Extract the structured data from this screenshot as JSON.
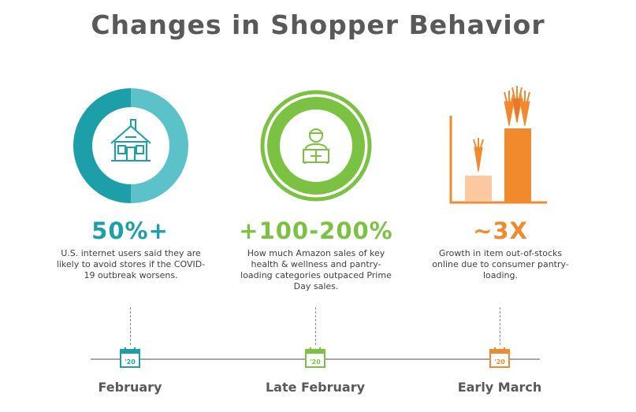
{
  "title": "Changes in Shopper Behavior",
  "colors": {
    "teal": "#1c9fa9",
    "teal_light": "#5bc2ca",
    "green": "#7cc242",
    "orange": "#f08a2c",
    "orange_light": "#fbc8a0",
    "text": "#404040",
    "heading": "#595959"
  },
  "columns": [
    {
      "icon": "house-icon",
      "stat": "50%+",
      "description": "U.S. internet users said they are likely to avoid stores if the COVID-19 outbreak worsens.",
      "timeline_label": "February",
      "calendar_year": "'20"
    },
    {
      "icon": "delivery-person-icon",
      "stat": "+100-200%",
      "description": "How much Amazon sales of key health & wellness and pantry-loading categories outpaced Prime Day sales.",
      "timeline_label": "Late February",
      "calendar_year": "'20"
    },
    {
      "icon": "carrot-bar-chart-icon",
      "stat": "~3X",
      "description": "Growth in item out-of-stocks online due to consumer pantry-loading.",
      "timeline_label": "Early March",
      "calendar_year": "'20"
    }
  ]
}
